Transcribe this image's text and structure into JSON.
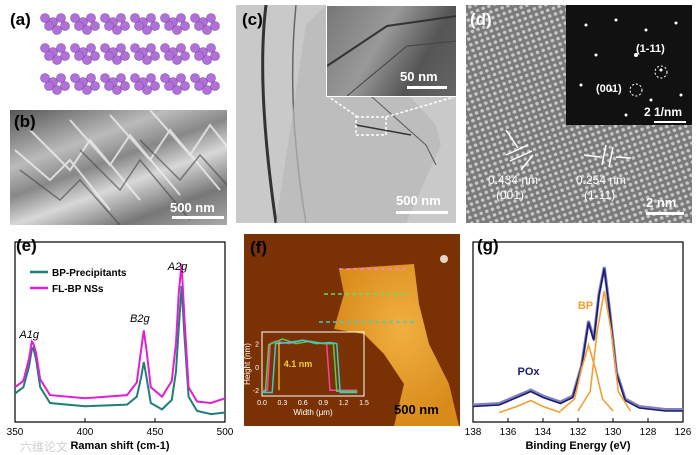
{
  "panels": {
    "a": {
      "label": "(a)"
    },
    "b": {
      "label": "(b)",
      "scale": "500 nm"
    },
    "c": {
      "label": "(c)",
      "scale": "500 nm",
      "inset_scale": "50 nm"
    },
    "d": {
      "label": "(d)",
      "scale": "2 nm",
      "inset_scale": "2 1/nm",
      "inset_spots": [
        "(1-11)",
        "(001)"
      ],
      "lattice": [
        {
          "spacing": "0.434 nm",
          "plane": "(001)"
        },
        {
          "spacing": "0.254 nm",
          "plane": "(1-11)"
        }
      ]
    },
    "e": {
      "label": "(e)"
    },
    "f": {
      "label": "(f)",
      "scale": "500 nm"
    },
    "g": {
      "label": "(g)"
    }
  },
  "watermark": "六维论文",
  "colors": {
    "teal": "#1e7f78",
    "magenta": "#e020d0",
    "navy": "#1c1c70",
    "orange": "#f0a030",
    "purple_atom": "#b070d8"
  },
  "chart_data": [
    {
      "panel": "e",
      "type": "line",
      "xlabel": "Raman shift (cm-1)",
      "ylabel": "",
      "xlim": [
        350,
        500
      ],
      "xticks": [
        350,
        400,
        450,
        500
      ],
      "legend": "top-left",
      "peak_labels": [
        {
          "text": "A1g",
          "x": 363
        },
        {
          "text": "B2g",
          "x": 442
        },
        {
          "text": "A2g",
          "x": 469
        }
      ],
      "series": [
        {
          "name": "BP-Precipitants",
          "color": "#1e7f78",
          "x": [
            350,
            356,
            360,
            362,
            363,
            365,
            368,
            375,
            400,
            430,
            437,
            440,
            442,
            444,
            447,
            455,
            462,
            465,
            467,
            469,
            471,
            474,
            480,
            490,
            500
          ],
          "y": [
            0.18,
            0.22,
            0.35,
            0.46,
            0.47,
            0.4,
            0.22,
            0.12,
            0.1,
            0.11,
            0.16,
            0.28,
            0.38,
            0.28,
            0.12,
            0.08,
            0.14,
            0.32,
            0.6,
            0.86,
            0.55,
            0.16,
            0.07,
            0.05,
            0.06
          ]
        },
        {
          "name": "FL-BP NSs",
          "color": "#e020d0",
          "x": [
            350,
            356,
            360,
            362,
            363,
            365,
            368,
            375,
            400,
            430,
            437,
            440,
            442,
            444,
            447,
            455,
            462,
            465,
            467,
            469,
            471,
            474,
            480,
            490,
            500
          ],
          "y": [
            0.22,
            0.26,
            0.4,
            0.51,
            0.5,
            0.44,
            0.27,
            0.17,
            0.15,
            0.17,
            0.25,
            0.45,
            0.58,
            0.45,
            0.22,
            0.16,
            0.26,
            0.5,
            0.82,
            1.0,
            0.66,
            0.22,
            0.13,
            0.12,
            0.15
          ]
        }
      ]
    },
    {
      "panel": "f-inset",
      "type": "line",
      "xlabel": "Width (μm)",
      "ylabel": "Height (nm)",
      "xlim": [
        0.0,
        1.5
      ],
      "ylim": [
        -2.5,
        3
      ],
      "xticks": [
        "0.0",
        "0.3",
        "0.6",
        "0.9",
        "1.2",
        "1.5"
      ],
      "yticks": [
        "-2",
        "0",
        "2"
      ],
      "annotation": "4.1 nm",
      "series": [
        {
          "color": "#ff40a0",
          "x": [
            0.0,
            0.08,
            0.12,
            0.2,
            0.4,
            0.6,
            0.8,
            0.95,
            1.0,
            1.05,
            1.2,
            1.4
          ],
          "y": [
            -2.0,
            -2.0,
            2.0,
            2.2,
            2.0,
            2.3,
            2.1,
            2.0,
            -2.0,
            -2.0,
            -2.0,
            -2.0
          ]
        },
        {
          "color": "#50d050",
          "x": [
            0.0,
            0.05,
            0.1,
            0.3,
            0.5,
            0.7,
            0.9,
            1.05,
            1.1,
            1.15,
            1.3,
            1.4
          ],
          "y": [
            -2.1,
            -2.1,
            1.9,
            2.4,
            2.0,
            2.2,
            2.0,
            2.0,
            -2.1,
            -2.1,
            -2.1,
            -2.1
          ]
        },
        {
          "color": "#40c8c8",
          "x": [
            0.0,
            0.15,
            0.2,
            0.4,
            0.6,
            0.8,
            1.0,
            1.1,
            1.15,
            1.2,
            1.4
          ],
          "y": [
            -2.2,
            -2.2,
            2.0,
            2.1,
            2.3,
            2.0,
            2.1,
            2.0,
            -2.2,
            -2.2,
            -2.2
          ]
        }
      ]
    },
    {
      "panel": "g",
      "type": "line",
      "xlabel": "Binding Energy (eV)",
      "ylabel": "",
      "xlim": [
        138,
        126
      ],
      "xticks": [
        138,
        136,
        134,
        132,
        130,
        128,
        126
      ],
      "annotations": [
        {
          "text": "BP",
          "x": 131
        },
        {
          "text": "POx",
          "x": 134.6
        }
      ],
      "series": [
        {
          "color": "#8080c0",
          "x": [
            138,
            136.5,
            135.5,
            134.7,
            134,
            133,
            132.3,
            131.8,
            131.4,
            131.1,
            130.8,
            130.5,
            130.2,
            129.8,
            129.3,
            128.5,
            127,
            126
          ],
          "y": [
            0.06,
            0.07,
            0.12,
            0.16,
            0.12,
            0.08,
            0.12,
            0.32,
            0.62,
            0.5,
            0.8,
            0.98,
            0.7,
            0.28,
            0.1,
            0.05,
            0.03,
            0.03
          ]
        },
        {
          "color": "#1c1c70",
          "x": [
            138,
            136.5,
            135.5,
            134.7,
            134,
            133,
            132.3,
            131.8,
            131.4,
            131.1,
            130.8,
            130.5,
            130.2,
            129.8,
            129.3,
            128.5,
            127,
            126
          ],
          "y": [
            0.05,
            0.06,
            0.11,
            0.15,
            0.11,
            0.07,
            0.11,
            0.31,
            0.61,
            0.49,
            0.79,
            0.97,
            0.69,
            0.27,
            0.09,
            0.04,
            0.02,
            0.02
          ]
        },
        {
          "color": "#f0a030",
          "x": [
            133.0,
            132.2,
            131.8,
            131.4,
            131.0,
            130.6,
            130.0
          ],
          "y": [
            0.02,
            0.1,
            0.3,
            0.46,
            0.3,
            0.1,
            0.02
          ]
        },
        {
          "color": "#f0a030",
          "x": [
            132.0,
            131.3,
            130.9,
            130.5,
            130.1,
            129.7,
            129.0
          ],
          "y": [
            0.02,
            0.15,
            0.55,
            0.82,
            0.55,
            0.15,
            0.02
          ]
        },
        {
          "color": "#f0a030",
          "x": [
            136.5,
            135.5,
            134.7,
            134.0,
            133.0
          ],
          "y": [
            0.01,
            0.05,
            0.09,
            0.05,
            0.01
          ]
        }
      ]
    }
  ]
}
